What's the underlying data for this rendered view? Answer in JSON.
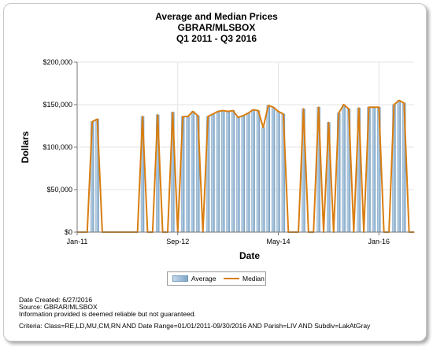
{
  "header": {
    "title_line1": "Average and Median Prices",
    "title_line2": "GBRAR/MLSBOX",
    "title_line3": "Q1 2011 - Q3 2016"
  },
  "footer": {
    "created": "Date Created: 6/27/2016",
    "source": "Source: GBRAR/MLSBOX",
    "disclaimer": "Information provided is deemed reliable but not guaranteed.",
    "criteria": "Criteria: Class=RE,LD,MU,CM,RN AND Date Range=01/01/2011-09/30/2016 AND Parish=LIV AND Subdiv=LakAtGray"
  },
  "chart_data": {
    "type": "bar",
    "xlabel": "Date",
    "ylabel": "Dollars",
    "ylim": [
      0,
      200000
    ],
    "yticks": [
      "$0",
      "$50,000",
      "$100,000",
      "$150,000",
      "$200,000"
    ],
    "ytick_values": [
      0,
      50000,
      100000,
      150000,
      200000
    ],
    "xtick_labels": [
      "Jan-11",
      "Sep-12",
      "May-14",
      "Jan-16"
    ],
    "xtick_month_index": [
      0,
      20,
      40,
      60
    ],
    "x_start": "Jan-11",
    "grid": true,
    "legend_position": "bottom",
    "colors": {
      "average": "#8fb3d3",
      "median": "#d97d0f"
    },
    "series": [
      {
        "name": "Average",
        "values": [
          0,
          0,
          0,
          130000,
          133000,
          0,
          0,
          0,
          0,
          0,
          0,
          0,
          0,
          136000,
          0,
          0,
          138000,
          0,
          0,
          141000,
          0,
          136000,
          136000,
          142000,
          137000,
          0,
          136000,
          139000,
          142000,
          143000,
          142000,
          143000,
          135000,
          137000,
          140000,
          144000,
          143000,
          123000,
          149000,
          147000,
          142000,
          139000,
          0,
          0,
          0,
          145000,
          0,
          0,
          147000,
          0,
          129000,
          0,
          140000,
          150000,
          145000,
          0,
          146000,
          0,
          147000,
          147000,
          147000,
          0,
          0,
          150000,
          155000,
          152000,
          0,
          0
        ]
      },
      {
        "name": "Median",
        "values": [
          0,
          0,
          0,
          130000,
          133000,
          0,
          0,
          0,
          0,
          0,
          0,
          0,
          0,
          136000,
          0,
          0,
          138000,
          0,
          0,
          141000,
          0,
          136000,
          136000,
          142000,
          137000,
          0,
          136000,
          139000,
          142000,
          143000,
          142000,
          143000,
          135000,
          137000,
          140000,
          144000,
          143000,
          123000,
          149000,
          147000,
          142000,
          139000,
          0,
          0,
          0,
          145000,
          0,
          0,
          147000,
          0,
          129000,
          0,
          140000,
          150000,
          145000,
          0,
          146000,
          0,
          147000,
          147000,
          147000,
          0,
          0,
          150000,
          155000,
          152000,
          0,
          0
        ]
      }
    ]
  }
}
